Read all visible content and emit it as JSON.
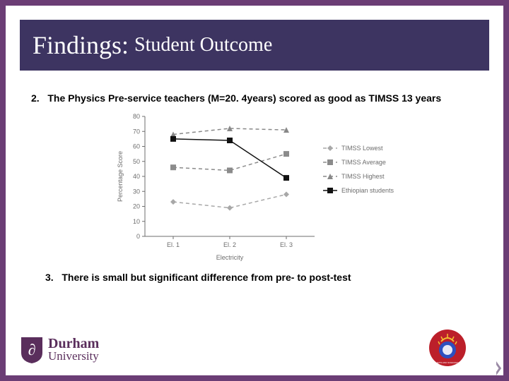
{
  "title": {
    "main": "Findings:",
    "sub": "Student Outcome"
  },
  "items": {
    "point2_num": "2.",
    "point2_text": "The Physics Pre-service teachers (M=20. 4years) scored as good as TIMSS 13 years",
    "point3_num": "3.",
    "point3_text": "There is small but significant difference from pre- to post-test"
  },
  "chart": {
    "type": "line",
    "y_label": "Percentage Score",
    "x_label": "Electricity",
    "categories": [
      "El. 1",
      "El. 2",
      "El. 3"
    ],
    "ylim": [
      0,
      80
    ],
    "ytick_step": 10,
    "series": [
      {
        "name": "TIMSS Lowest",
        "values": [
          23,
          19,
          28
        ],
        "color": "#a8a8a8",
        "marker": "diamond",
        "dash": "5,4"
      },
      {
        "name": "TIMSS Average",
        "values": [
          46,
          44,
          55
        ],
        "color": "#8b8b8b",
        "marker": "square",
        "dash": "5,4"
      },
      {
        "name": "TIMSS Highest",
        "values": [
          68,
          72,
          71
        ],
        "color": "#888888",
        "marker": "triangle",
        "dash": "5,4"
      },
      {
        "name": "Ethiopian students",
        "values": [
          65,
          64,
          39
        ],
        "color": "#111111",
        "marker": "square",
        "dash": "none"
      }
    ],
    "axis_color": "#6d6d6d",
    "tick_color": "#6d6d6d",
    "label_color": "#6d6d6d",
    "label_fontsize": 9,
    "tick_fontsize": 9,
    "legend_fontsize": 9,
    "background": "#ffffff"
  },
  "logos": {
    "durham_name": "Durham",
    "durham_word2": "University",
    "elk_letter": "∂",
    "crest_bg": "#5a2e5c"
  }
}
